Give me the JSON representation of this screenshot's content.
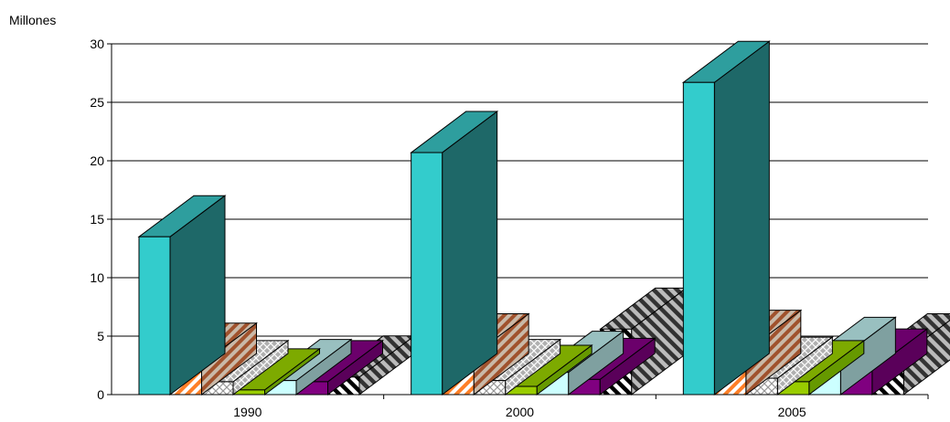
{
  "chart_data": {
    "type": "bar",
    "unit_label": "Millones",
    "categories": [
      "1990",
      "2000",
      "2005"
    ],
    "y_ticks": [
      "0",
      "5",
      "10",
      "15",
      "20",
      "25",
      "30"
    ],
    "ylim": [
      0,
      30
    ],
    "grid": true,
    "three_d": true,
    "series": [
      {
        "values": [
          13.5,
          20.7,
          26.7
        ],
        "pattern": "solid",
        "front_color": "#33CCCC",
        "side_color": "#1E6868",
        "top_color": "#2E9E9E"
      },
      {
        "values": [
          2.6,
          3.4,
          3.7
        ],
        "pattern": "diagonal-stripes",
        "front_color": "#FF7F27",
        "side_color": "#A0522D",
        "top_color": "#C77A40"
      },
      {
        "values": [
          1.1,
          1.2,
          1.4
        ],
        "pattern": "crosshatch",
        "front_color": "#CCCCCC",
        "side_color": "#999999",
        "top_color": "#AAAAAA"
      },
      {
        "values": [
          0.4,
          0.7,
          1.1
        ],
        "pattern": "solid",
        "front_color": "#99CC00",
        "side_color": "#669900",
        "top_color": "#7DAA00"
      },
      {
        "values": [
          1.2,
          1.9,
          3.1
        ],
        "pattern": "solid",
        "front_color": "#CCFFFF",
        "side_color": "#7FA0A0",
        "top_color": "#99C0C0"
      },
      {
        "values": [
          1.1,
          1.3,
          2.1
        ],
        "pattern": "solid",
        "front_color": "#800080",
        "side_color": "#5A005A",
        "top_color": "#6B006B"
      },
      {
        "values": [
          1.5,
          5.6,
          3.4
        ],
        "pattern": "diagonal-stripes-bw",
        "front_color": "#FFFFFF",
        "side_color": "#666666",
        "top_color": "#888888"
      }
    ]
  }
}
